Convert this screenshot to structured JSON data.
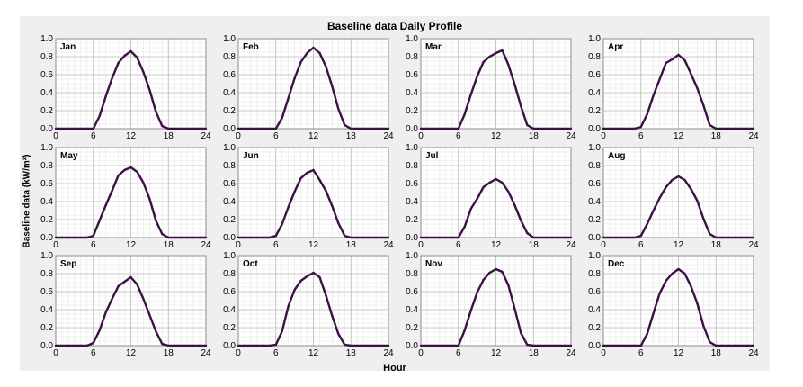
{
  "chart_data": {
    "type": "line",
    "title": "Baseline data Daily Profile",
    "ylabel": "Baseline data (kW/m²)",
    "xlabel": "Hour",
    "xlim": [
      0,
      24
    ],
    "ylim": [
      0,
      1.0
    ],
    "xticks": [
      "0",
      "6",
      "12",
      "18",
      "24"
    ],
    "yticks": [
      "0.0",
      "0.2",
      "0.4",
      "0.6",
      "0.8",
      "1.0"
    ],
    "grid": true,
    "line_color": "#3c1044",
    "x": [
      0,
      1,
      2,
      3,
      4,
      5,
      6,
      7,
      8,
      9,
      10,
      11,
      12,
      13,
      14,
      15,
      16,
      17,
      18,
      19,
      20,
      21,
      22,
      23,
      24
    ],
    "series": [
      {
        "month": "Jan",
        "values": [
          0,
          0,
          0,
          0,
          0,
          0,
          0,
          0.14,
          0.36,
          0.56,
          0.73,
          0.81,
          0.86,
          0.79,
          0.63,
          0.43,
          0.19,
          0.03,
          0,
          0,
          0,
          0,
          0,
          0,
          0
        ]
      },
      {
        "month": "Feb",
        "values": [
          0,
          0,
          0,
          0,
          0,
          0,
          0,
          0.12,
          0.34,
          0.56,
          0.74,
          0.84,
          0.9,
          0.84,
          0.69,
          0.47,
          0.22,
          0.04,
          0,
          0,
          0,
          0,
          0,
          0,
          0
        ]
      },
      {
        "month": "Mar",
        "values": [
          0,
          0,
          0,
          0,
          0,
          0,
          0,
          0.16,
          0.38,
          0.58,
          0.74,
          0.8,
          0.84,
          0.87,
          0.71,
          0.49,
          0.25,
          0.04,
          0,
          0,
          0,
          0,
          0,
          0,
          0
        ]
      },
      {
        "month": "Apr",
        "values": [
          0,
          0,
          0,
          0,
          0,
          0,
          0.02,
          0.16,
          0.37,
          0.55,
          0.73,
          0.77,
          0.82,
          0.76,
          0.61,
          0.45,
          0.26,
          0.04,
          0,
          0,
          0,
          0,
          0,
          0,
          0
        ]
      },
      {
        "month": "May",
        "values": [
          0,
          0,
          0,
          0,
          0,
          0,
          0.02,
          0.19,
          0.36,
          0.52,
          0.69,
          0.75,
          0.78,
          0.73,
          0.61,
          0.43,
          0.19,
          0.04,
          0,
          0,
          0,
          0,
          0,
          0,
          0
        ]
      },
      {
        "month": "Jun",
        "values": [
          0,
          0,
          0,
          0,
          0,
          0,
          0.02,
          0.15,
          0.34,
          0.51,
          0.66,
          0.72,
          0.75,
          0.64,
          0.52,
          0.35,
          0.16,
          0.02,
          0,
          0,
          0,
          0,
          0,
          0,
          0
        ]
      },
      {
        "month": "Jul",
        "values": [
          0,
          0,
          0,
          0,
          0,
          0,
          0,
          0.12,
          0.32,
          0.43,
          0.56,
          0.61,
          0.65,
          0.61,
          0.51,
          0.36,
          0.19,
          0.05,
          0,
          0,
          0,
          0,
          0,
          0,
          0
        ]
      },
      {
        "month": "Aug",
        "values": [
          0,
          0,
          0,
          0,
          0,
          0,
          0.02,
          0.15,
          0.3,
          0.44,
          0.56,
          0.64,
          0.68,
          0.64,
          0.54,
          0.41,
          0.21,
          0.04,
          0,
          0,
          0,
          0,
          0,
          0,
          0
        ]
      },
      {
        "month": "Sep",
        "values": [
          0,
          0,
          0,
          0,
          0,
          0,
          0.03,
          0.17,
          0.37,
          0.52,
          0.66,
          0.71,
          0.76,
          0.68,
          0.52,
          0.34,
          0.16,
          0.02,
          0,
          0,
          0,
          0,
          0,
          0,
          0
        ]
      },
      {
        "month": "Oct",
        "values": [
          0,
          0,
          0,
          0,
          0,
          0,
          0.01,
          0.16,
          0.44,
          0.62,
          0.72,
          0.77,
          0.81,
          0.76,
          0.56,
          0.33,
          0.13,
          0.01,
          0,
          0,
          0,
          0,
          0,
          0,
          0
        ]
      },
      {
        "month": "Nov",
        "values": [
          0,
          0,
          0,
          0,
          0,
          0,
          0,
          0.17,
          0.39,
          0.59,
          0.73,
          0.81,
          0.85,
          0.82,
          0.67,
          0.41,
          0.14,
          0.01,
          0,
          0,
          0,
          0,
          0,
          0,
          0
        ]
      },
      {
        "month": "Dec",
        "values": [
          0,
          0,
          0,
          0,
          0,
          0,
          0,
          0.13,
          0.36,
          0.58,
          0.72,
          0.8,
          0.85,
          0.8,
          0.66,
          0.47,
          0.22,
          0.04,
          0,
          0,
          0,
          0,
          0,
          0,
          0
        ]
      }
    ]
  }
}
